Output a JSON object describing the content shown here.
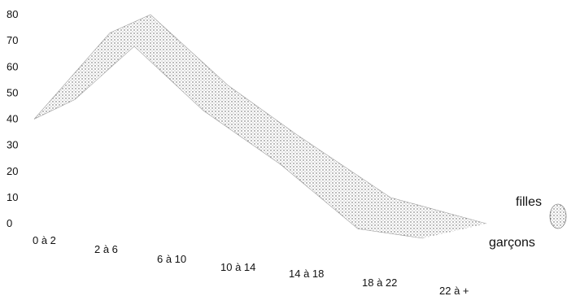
{
  "chart_data": {
    "type": "area",
    "categories": [
      "0 à 2",
      "2 à 6",
      "6 à 10",
      "10 à 14",
      "14 à 18",
      "18 à 22",
      "22 à +"
    ],
    "series": [
      {
        "name": "filles",
        "values": [
          40,
          73,
          80,
          53,
          34,
          10,
          0
        ]
      },
      {
        "name": "garçons",
        "values": [
          40,
          50,
          71,
          47,
          27,
          3,
          0
        ]
      }
    ],
    "ylim": [
      0,
      80
    ],
    "yticks": [
      0,
      10,
      20,
      30,
      40,
      50,
      60,
      70,
      80
    ],
    "title": "",
    "xlabel": "",
    "ylabel": "",
    "grid": false,
    "legend": "right",
    "colors": {
      "fill": "#bdbdbd",
      "stipple": "#4a4a4a",
      "text": "#111111"
    }
  }
}
